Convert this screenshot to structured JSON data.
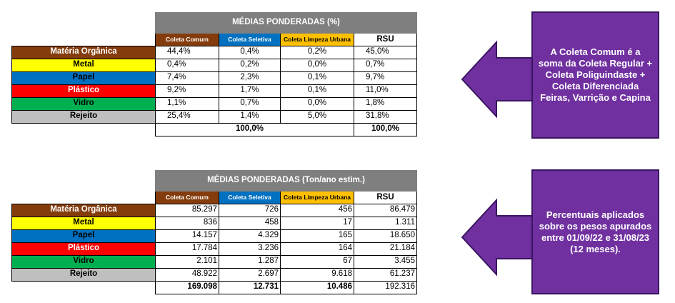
{
  "colors": {
    "header_grey": "#7f7f7f",
    "coleta_comum": "#843c0c",
    "coleta_seletiva": "#0070c0",
    "coleta_limpeza": "#ffc000",
    "note_purple": "#7030a0"
  },
  "columns": [
    "Coleta Comum",
    "Coleta Seletiva",
    "Coleta Limpeza Urbana",
    "RSU"
  ],
  "categories": [
    {
      "label": "Matéria Orgânica",
      "bg": "#843c0c",
      "fg": "#ffffff"
    },
    {
      "label": "Metal",
      "bg": "#ffff00",
      "fg": "#000000"
    },
    {
      "label": "Papel",
      "bg": "#0070c0",
      "fg": "#000000"
    },
    {
      "label": "Plástico",
      "bg": "#ff0000",
      "fg": "#ffffff"
    },
    {
      "label": "Vidro",
      "bg": "#00b050",
      "fg": "#000000"
    },
    {
      "label": "Rejeito",
      "bg": "#bfbfbf",
      "fg": "#000000"
    }
  ],
  "table_pct": {
    "title": "MÉDIAS PONDERADAS (%)",
    "rows": [
      [
        "44,4%",
        "0,4%",
        "0,2%",
        "45,0%"
      ],
      [
        "0,4%",
        "0,2%",
        "0,0%",
        "0,7%"
      ],
      [
        "7,4%",
        "2,3%",
        "0,1%",
        "9,7%"
      ],
      [
        "9,2%",
        "1,7%",
        "0,1%",
        "11,0%"
      ],
      [
        "1,1%",
        "0,7%",
        "0,0%",
        "1,8%"
      ],
      [
        "25,4%",
        "1,4%",
        "5,0%",
        "31,8%"
      ]
    ],
    "totals": [
      "",
      "100,0%",
      "",
      "100,0%"
    ]
  },
  "table_ton": {
    "title": "MÉDIAS PONDERADAS (Ton/ano estim.)",
    "rows": [
      [
        "85.297",
        "726",
        "456",
        "86.479"
      ],
      [
        "836",
        "458",
        "17",
        "1.311"
      ],
      [
        "14.157",
        "4.329",
        "165",
        "18.650"
      ],
      [
        "17.784",
        "3.236",
        "164",
        "21.184"
      ],
      [
        "2.101",
        "1.287",
        "67",
        "3.455"
      ],
      [
        "48.922",
        "2.697",
        "9.618",
        "61.237"
      ]
    ],
    "totals": [
      "169.098",
      "12.731",
      "10.486",
      "192.316"
    ]
  },
  "notes": {
    "top": "A Coleta Comum é a soma da Coleta Regular + Coleta Poliguindaste + Coleta Diferenciada Feiras, Varrição e Capina",
    "bottom": "Percentuais aplicados sobre os pesos apurados entre 01/09/22 e 31/08/23 (12 meses)."
  }
}
